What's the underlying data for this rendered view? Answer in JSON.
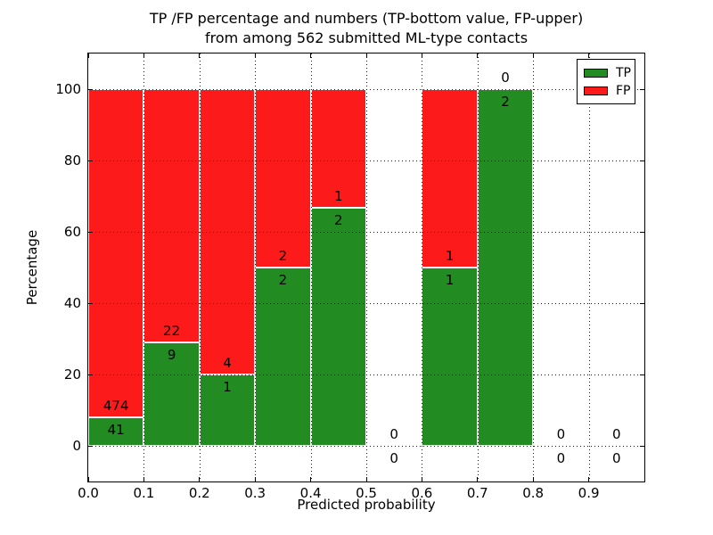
{
  "chart_data": {
    "type": "bar",
    "stacked": true,
    "title_line1": "TP /FP percentage and numbers (TP-bottom value, FP-upper)",
    "title_line2": "from among 562 submitted ML-type contacts",
    "xlabel": "Predicted probability",
    "ylabel": "Percentage",
    "x_ticks": [
      "0.0",
      "0.1",
      "0.2",
      "0.3",
      "0.4",
      "0.5",
      "0.6",
      "0.7",
      "0.8",
      "0.9"
    ],
    "y_ticks": [
      0,
      20,
      40,
      60,
      80,
      100
    ],
    "ylim": [
      -10,
      110
    ],
    "xlim": [
      0.0,
      1.0
    ],
    "grid": "dotted",
    "legend_position": "upper-right",
    "legend": [
      {
        "label": "TP",
        "color": "#228b22"
      },
      {
        "label": "FP",
        "color": "#fc1a1a"
      }
    ],
    "bins": [
      {
        "x0": 0.0,
        "x1": 0.1,
        "tp": 41,
        "fp": 474
      },
      {
        "x0": 0.1,
        "x1": 0.2,
        "tp": 9,
        "fp": 22
      },
      {
        "x0": 0.2,
        "x1": 0.3,
        "tp": 1,
        "fp": 4
      },
      {
        "x0": 0.3,
        "x1": 0.4,
        "tp": 2,
        "fp": 2
      },
      {
        "x0": 0.4,
        "x1": 0.5,
        "tp": 2,
        "fp": 1
      },
      {
        "x0": 0.5,
        "x1": 0.6,
        "tp": 0,
        "fp": 0
      },
      {
        "x0": 0.6,
        "x1": 0.7,
        "tp": 1,
        "fp": 1
      },
      {
        "x0": 0.7,
        "x1": 0.8,
        "tp": 2,
        "fp": 0
      },
      {
        "x0": 0.8,
        "x1": 0.9,
        "tp": 0,
        "fp": 0
      },
      {
        "x0": 0.9,
        "x1": 1.0,
        "tp": 0,
        "fp": 0
      }
    ],
    "colors": {
      "tp": "#228b22",
      "fp": "#fc1a1a",
      "bar_edge": "#ffffff",
      "grid": "#000000",
      "spine": "#000000",
      "text": "#000000"
    }
  }
}
